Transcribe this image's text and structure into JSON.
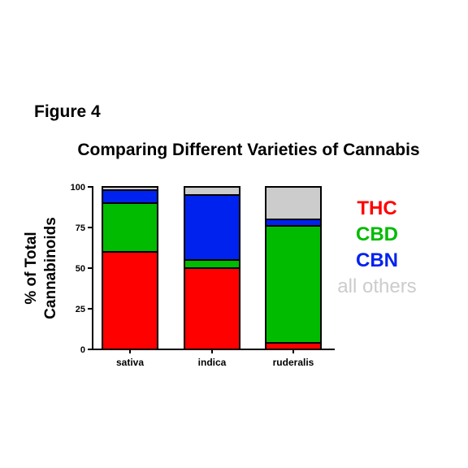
{
  "figure_label": "Figure 4",
  "chart_data": {
    "type": "bar",
    "stacked": true,
    "title": "Comparing Different Varieties of Cannabis",
    "xlabel": "",
    "ylabel_lines": [
      "% of Total",
      "Cannabinoids"
    ],
    "ylim": [
      0,
      100
    ],
    "yticks": [
      0,
      25,
      50,
      75,
      100
    ],
    "categories": [
      "sativa",
      "indica",
      "ruderalis"
    ],
    "series": [
      {
        "name": "THC",
        "color": "#ff0000",
        "values": [
          60,
          50,
          4
        ]
      },
      {
        "name": "CBD",
        "color": "#00bb00",
        "values": [
          30,
          5,
          72
        ]
      },
      {
        "name": "CBN",
        "color": "#0022ee",
        "values": [
          8,
          40,
          4
        ]
      },
      {
        "name": "all others",
        "color": "#cccccc",
        "values": [
          2,
          5,
          20
        ]
      }
    ],
    "grid": false,
    "legend_position": "right"
  }
}
